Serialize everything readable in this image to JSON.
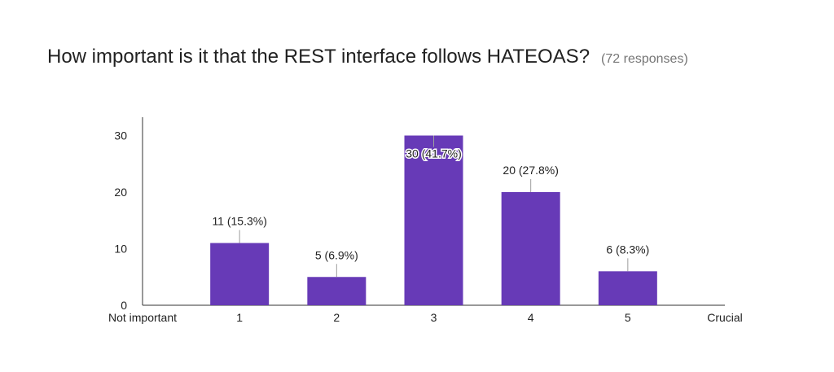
{
  "header": {
    "title": "How important is it that the REST interface follows HATEOAS?",
    "responses": "(72 responses)"
  },
  "chart_data": {
    "type": "bar",
    "title": "How important is it that the REST interface follows HATEOAS?",
    "xlabel": "",
    "ylabel": "",
    "categories": [
      "1",
      "2",
      "3",
      "4",
      "5"
    ],
    "values": [
      11,
      5,
      30,
      20,
      6
    ],
    "data_labels": [
      "11 (15.3%)",
      "5 (6.9%)",
      "30 (41.7%)",
      "20 (27.8%)",
      "6 (8.3%)"
    ],
    "x_end_labels": [
      "Not important",
      "Crucial"
    ],
    "y_ticks": [
      0,
      10,
      20,
      30
    ],
    "ylim": [
      0,
      33
    ],
    "grid": false,
    "colors": {
      "bar": "#673ab7",
      "axis": "#333333",
      "leader": "#9e9e9e"
    }
  }
}
